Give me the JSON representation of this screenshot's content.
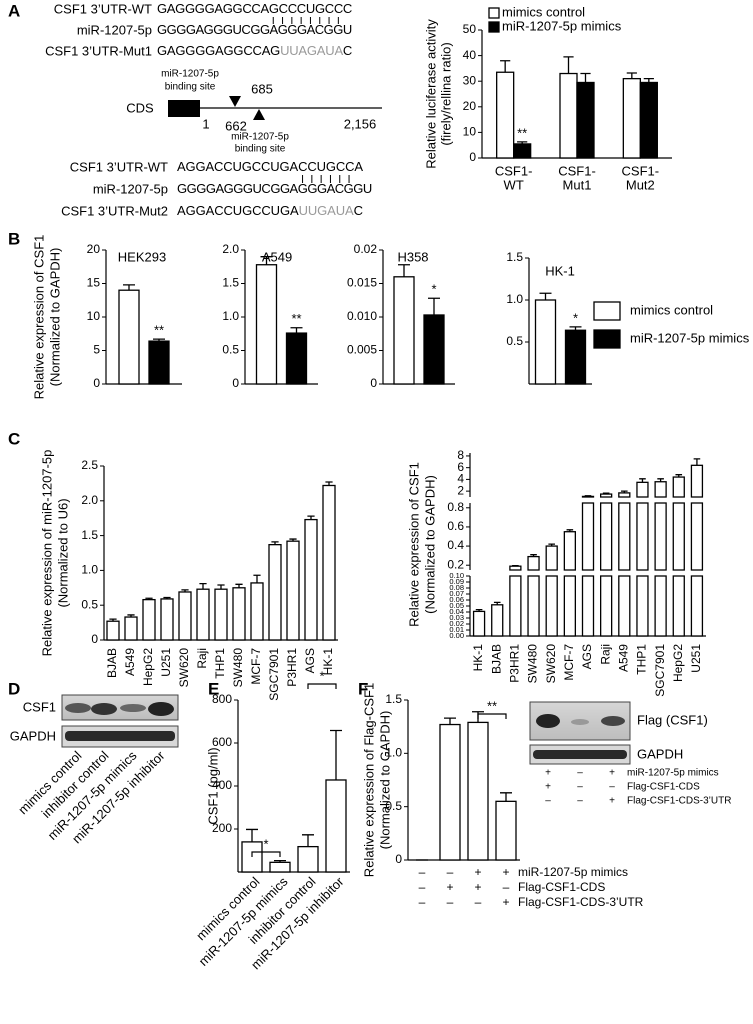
{
  "panel_labels": [
    "A",
    "B",
    "C",
    "D",
    "E",
    "F"
  ],
  "sequences_top": [
    {
      "label": "CSF1 3’UTR-WT",
      "seq": [
        "GAGGGGAGGCCAGCCCUGCCC"
      ]
    },
    {
      "label": "miR-1207-5p",
      "seq": [
        "GGGGAGGGUCGGAGGGACGGU"
      ]
    },
    {
      "label": "CSF1 3’UTR-Mut1",
      "seq": [
        "GAGGGGAGGCCAG",
        "UUAGAUA",
        "C"
      ]
    }
  ],
  "diagram": {
    "cds": "CDS",
    "start": "1",
    "site_start": "662",
    "site_end": "685",
    "end": "2,156",
    "site_label_top": [
      "miR-1207-5p",
      "binding site"
    ],
    "site_label_bottom": [
      "miR-1207-5p",
      "binding site"
    ]
  },
  "sequences_bottom": [
    {
      "label": "CSF1 3’UTR-WT",
      "seq": [
        "AGGACCUGCCUGACCUGCCA"
      ]
    },
    {
      "label": "miR-1207-5p",
      "seq": [
        "GGGGAGGGUCGGAGGGACGGU"
      ]
    },
    {
      "label": "CSF1 3’UTR-Mut2",
      "seq": [
        "AGGACCUGCCUGA",
        "UUGAUA",
        "C"
      ]
    }
  ],
  "blot_d": {
    "rows": [
      "CSF1",
      "GAPDH"
    ],
    "lanes": [
      "mimics control",
      "inhibitor control",
      "miR-1207-5p mimics",
      "miR-1207-5p inhibitor"
    ]
  },
  "blot_f": {
    "rows": [
      "Flag (CSF1)",
      "GAPDH"
    ],
    "conditions": [
      {
        "label": "miR-1207-5p mimics",
        "signs": [
          "+",
          "–",
          "+"
        ]
      },
      {
        "label": "Flag-CSF1-CDS",
        "signs": [
          "+",
          "–",
          "–"
        ]
      },
      {
        "label": "Flag-CSF1-CDS-3’UTR",
        "signs": [
          "–",
          "–",
          "+"
        ]
      }
    ]
  },
  "chart_data": [
    {
      "type": "bar",
      "ylabel": [
        "Relative luciferase activity",
        "(firely/rellina ratio)"
      ],
      "categories": [
        [
          "CSF1-",
          "WT"
        ],
        [
          "CSF1-",
          "Mut1"
        ],
        [
          "CSF1-",
          "Mut2"
        ]
      ],
      "series": [
        {
          "name": "mimics control",
          "color": "#ffffff",
          "values": [
            33.5,
            33,
            31
          ],
          "errors": [
            4.5,
            6.5,
            2.2
          ]
        },
        {
          "name": "miR-1207-5p mimics",
          "color": "#000000",
          "values": [
            5.5,
            29.5,
            29.5
          ],
          "errors": [
            0.8,
            3.5,
            1.5
          ]
        }
      ],
      "ylim": [
        0,
        50
      ],
      "yticks": [
        0,
        10,
        20,
        30,
        40,
        50
      ],
      "annotations": [
        "**"
      ]
    },
    {
      "type": "bar",
      "title": "HEK293",
      "ylabel": [
        "Relative expression of CSF1",
        "(Normalized to GAPDH)"
      ],
      "series": [
        {
          "color": "#ffffff",
          "values": [
            14
          ],
          "errors": [
            0.8
          ]
        },
        {
          "color": "#000000",
          "values": [
            6.4
          ],
          "errors": [
            0.3
          ]
        }
      ],
      "ylim": [
        0,
        20
      ],
      "yticks": [
        0,
        5,
        10,
        15,
        20
      ],
      "annotations": [
        "**"
      ]
    },
    {
      "type": "bar",
      "title": "A549",
      "series": [
        {
          "color": "#ffffff",
          "values": [
            1.78
          ],
          "errors": [
            0.12
          ]
        },
        {
          "color": "#000000",
          "values": [
            0.76
          ],
          "errors": [
            0.08
          ]
        }
      ],
      "ylim": [
        0,
        2
      ],
      "yticks": [
        0,
        0.5,
        {
          "value": 1,
          "label": "1.0"
        },
        1.5,
        {
          "value": 2,
          "label": "2.0"
        }
      ],
      "annotations": [
        "**"
      ]
    },
    {
      "type": "bar",
      "title": "H358",
      "series": [
        {
          "color": "#ffffff",
          "values": [
            0.016
          ],
          "errors": [
            0.0018
          ]
        },
        {
          "color": "#000000",
          "values": [
            0.0103
          ],
          "errors": [
            0.0025
          ]
        }
      ],
      "ylim": [
        0,
        0.02
      ],
      "yticks": [
        0,
        0.005,
        {
          "value": 0.01,
          "label": "0.010"
        },
        0.015,
        0.02
      ],
      "annotations": [
        "*"
      ]
    },
    {
      "type": "bar",
      "title": "HK-1",
      "series": [
        {
          "name": "mimics control",
          "color": "#ffffff",
          "values": [
            1.0
          ],
          "errors": [
            0.08
          ]
        },
        {
          "name": "miR-1207-5p mimics",
          "color": "#000000",
          "values": [
            0.64
          ],
          "errors": [
            0.04
          ]
        }
      ],
      "ylim": [
        0,
        1.5
      ],
      "yticks": [
        0.5,
        {
          "value": 1,
          "label": "1.0"
        },
        1.5
      ],
      "annotations": [
        "*"
      ]
    },
    {
      "type": "bar",
      "ylabel": [
        "Relative expression of miR-1207-5p",
        "(Normalized to U6)"
      ],
      "categories": [
        "BJAB",
        "A549",
        "HepG2",
        "U251",
        "SW620",
        "Raji",
        "THP1",
        "SW480",
        "MCF-7",
        "SGC7901",
        "P3HR1",
        "AGS",
        "HK-1"
      ],
      "series": [
        {
          "color": "#ffffff",
          "values": [
            0.27,
            0.33,
            0.58,
            0.59,
            0.69,
            0.73,
            0.73,
            0.75,
            0.82,
            1.37,
            1.42,
            1.73,
            2.22
          ],
          "errors": [
            0.03,
            0.03,
            0.02,
            0.02,
            0.03,
            0.08,
            0.06,
            0.05,
            0.11,
            0.04,
            0.03,
            0.05,
            0.05
          ]
        }
      ],
      "ylim": [
        0,
        2.5
      ],
      "yticks": [
        0,
        0.5,
        {
          "value": 1,
          "label": "1.0"
        },
        1.5,
        {
          "value": 2,
          "label": "2.0"
        },
        2.5
      ]
    },
    {
      "type": "broken-bar",
      "ylabel": [
        "Relative expression of CSF1",
        "(Normalized to GAPDH)"
      ],
      "categories": [
        "HK-1",
        "BJAB",
        "P3HR1",
        "SW480",
        "SW620",
        "MCF-7",
        "AGS",
        "Raji",
        "A549",
        "THP1",
        "SGC7901",
        "HepG2",
        "U251"
      ],
      "series": [
        {
          "color": "#ffffff",
          "values": [
            0.041,
            0.052,
            0.19,
            0.29,
            0.4,
            0.55,
            1.1,
            1.5,
            1.7,
            3.5,
            3.6,
            4.4,
            6.4
          ],
          "errors": [
            0.003,
            0.004,
            0.006,
            0.02,
            0.02,
            0.02,
            0.1,
            0.15,
            0.3,
            0.6,
            0.5,
            0.4,
            1.1
          ]
        }
      ],
      "segments": [
        {
          "ylim": [
            0,
            0.1
          ],
          "yticks": [
            {
              "value": 0,
              "label": "0.00"
            },
            0.01,
            0.02,
            0.03,
            0.04,
            0.05,
            0.06,
            0.07,
            0.08,
            0.09,
            {
              "value": 0.1,
              "label": "0.10"
            }
          ]
        },
        {
          "ylim": [
            0.15,
            0.85
          ],
          "yticks": [
            0.2,
            0.4,
            0.6,
            0.8
          ]
        },
        {
          "ylim": [
            1,
            8.5
          ],
          "yticks": [
            2,
            4,
            6,
            8
          ]
        }
      ]
    },
    {
      "type": "bar",
      "ylabel": [
        "CSF1 (pg/ml)"
      ],
      "categories": [
        "mimics control",
        "miR-1207-5p mimics",
        "inhibitor control",
        "miR-1207-5p inhibitor"
      ],
      "series": [
        {
          "color": "#ffffff",
          "values": [
            140,
            45,
            118,
            428
          ],
          "errors": [
            58,
            8,
            55,
            230
          ]
        }
      ],
      "ylim": [
        0,
        800
      ],
      "yticks": [
        200,
        400,
        600,
        800
      ],
      "annotations": [
        "*",
        "*"
      ]
    },
    {
      "type": "bar",
      "ylabel": [
        "Relative expression of Flag-CSF1",
        "(Normalized to GAPDH)"
      ],
      "series": [
        {
          "color": "#ffffff",
          "values": [
            0,
            1.27,
            1.29,
            0.55
          ],
          "errors": [
            0,
            0.06,
            0.1,
            0.08
          ]
        }
      ],
      "ylim": [
        0,
        1.5
      ],
      "yticks": [
        0,
        0.5,
        {
          "value": 1,
          "label": "1.0"
        },
        1.5
      ],
      "annotations": [
        "**"
      ],
      "conditions": [
        {
          "label": "miR-1207-5p mimics",
          "signs": [
            "–",
            "–",
            "+",
            "+"
          ]
        },
        {
          "label": "Flag-CSF1-CDS",
          "signs": [
            "–",
            "+",
            "+",
            "–"
          ]
        },
        {
          "label": "Flag-CSF1-CDS-3’UTR",
          "signs": [
            "–",
            "–",
            "–",
            "+"
          ]
        }
      ]
    }
  ]
}
